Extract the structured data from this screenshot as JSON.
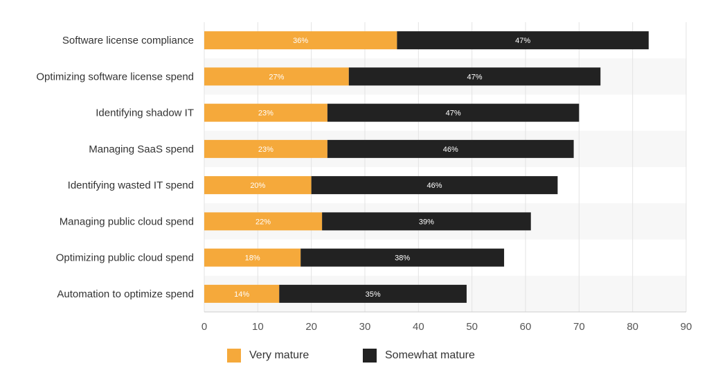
{
  "chart_data": {
    "type": "bar",
    "orientation": "horizontal",
    "stacked": true,
    "categories": [
      "Software license compliance",
      "Optimizing software license spend",
      "Identifying shadow IT",
      "Managing SaaS spend",
      "Identifying wasted IT spend",
      "Managing public cloud spend",
      "Optimizing public cloud spend",
      "Automation to optimize spend"
    ],
    "series": [
      {
        "name": "Very mature",
        "color": "#f5a93b",
        "label_color": "#ffffff",
        "values": [
          36,
          27,
          23,
          23,
          20,
          22,
          18,
          14
        ],
        "labels": [
          "36%",
          "27%",
          "23%",
          "23%",
          "20%",
          "22%",
          "18%",
          "14%"
        ]
      },
      {
        "name": "Somewhat mature",
        "color": "#222222",
        "label_color": "#ffffff",
        "values": [
          47,
          47,
          47,
          46,
          46,
          39,
          38,
          35
        ],
        "labels": [
          "47%",
          "47%",
          "47%",
          "46%",
          "46%",
          "39%",
          "38%",
          "35%"
        ]
      }
    ],
    "xlim": [
      0,
      90
    ],
    "xticks": [
      0,
      10,
      20,
      30,
      40,
      50,
      60,
      70,
      80,
      90
    ],
    "xtick_labels": [
      "0",
      "10",
      "20",
      "30",
      "40",
      "50",
      "60",
      "70",
      "80",
      "90"
    ],
    "grid": true,
    "legend_position": "bottom-center",
    "title": "",
    "xlabel": "",
    "ylabel": "",
    "alternate_row_shading": "#f7f7f7"
  }
}
